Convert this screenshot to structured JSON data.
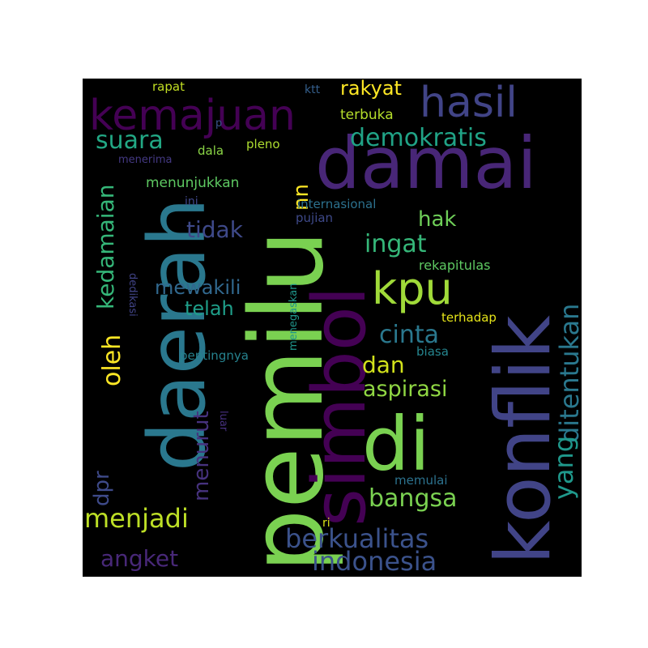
{
  "words": [
    {
      "text": "pemilu",
      "color": "#7ad151"
    },
    {
      "text": "konflik",
      "color": "#414487"
    },
    {
      "text": "simbol",
      "color": "#440154"
    },
    {
      "text": "daerah",
      "color": "#2a788e"
    },
    {
      "text": "damai",
      "color": "#482677"
    },
    {
      "text": "di",
      "color": "#7ad151"
    },
    {
      "text": "kemajuan",
      "color": "#440154"
    },
    {
      "text": "hasil",
      "color": "#414487"
    },
    {
      "text": "kpu",
      "color": "#a0da39"
    },
    {
      "text": "ditentukan",
      "color": "#2a788e"
    },
    {
      "text": "berkualitas",
      "color": "#3b528b"
    },
    {
      "text": "indonesia",
      "color": "#3b528b"
    },
    {
      "text": "yang",
      "color": "#1f988b"
    },
    {
      "text": "menjadi",
      "color": "#bddf26"
    },
    {
      "text": "bangsa",
      "color": "#7ad151"
    },
    {
      "text": "demokratis",
      "color": "#20a386"
    },
    {
      "text": "suara",
      "color": "#22a884"
    },
    {
      "text": "cinta",
      "color": "#2a788e"
    },
    {
      "text": "ingat",
      "color": "#35b779"
    },
    {
      "text": "angket",
      "color": "#482878"
    },
    {
      "text": "aspirasi",
      "color": "#90d743"
    },
    {
      "text": "dan",
      "color": "#d2e21b"
    },
    {
      "text": "kedamaian",
      "color": "#35b779"
    },
    {
      "text": "oleh",
      "color": "#fde725"
    },
    {
      "text": "menurut",
      "color": "#46327e"
    },
    {
      "text": "rakyat",
      "color": "#fde725"
    },
    {
      "text": "tidak",
      "color": "#3e4989"
    },
    {
      "text": "mewakili",
      "color": "#31688e"
    },
    {
      "text": "hak",
      "color": "#6ece58"
    },
    {
      "text": "telah",
      "color": "#1f9e89"
    },
    {
      "text": "dpr",
      "color": "#3e4a89"
    },
    {
      "text": "uu",
      "color": "#fde725"
    },
    {
      "text": "menunjukkan",
      "color": "#5ec962"
    },
    {
      "text": "rekapitulas",
      "color": "#5ec962"
    },
    {
      "text": "pentingnya",
      "color": "#26828e"
    },
    {
      "text": "terbuka",
      "color": "#b5de2b"
    },
    {
      "text": "memulai",
      "color": "#2c728e"
    },
    {
      "text": "biasa",
      "color": "#25858e"
    },
    {
      "text": "pleno",
      "color": "#addc30"
    },
    {
      "text": "terhadap",
      "color": "#e5e419"
    },
    {
      "text": "internasional",
      "color": "#2c718e"
    },
    {
      "text": "pujian",
      "color": "#3e4989"
    },
    {
      "text": "rapat",
      "color": "#c2df23"
    },
    {
      "text": "menerima",
      "color": "#443983"
    },
    {
      "text": "dala",
      "color": "#8bd646"
    },
    {
      "text": "ini",
      "color": "#3f4788"
    },
    {
      "text": "ktt",
      "color": "#355f8d"
    },
    {
      "text": "menegaskan",
      "color": "#1f968b"
    },
    {
      "text": "dedikasi",
      "color": "#414487"
    },
    {
      "text": "luar",
      "color": "#46307e"
    },
    {
      "text": "ri",
      "color": "#d8e219"
    },
    {
      "text": "p",
      "color": "#3a548c"
    }
  ]
}
